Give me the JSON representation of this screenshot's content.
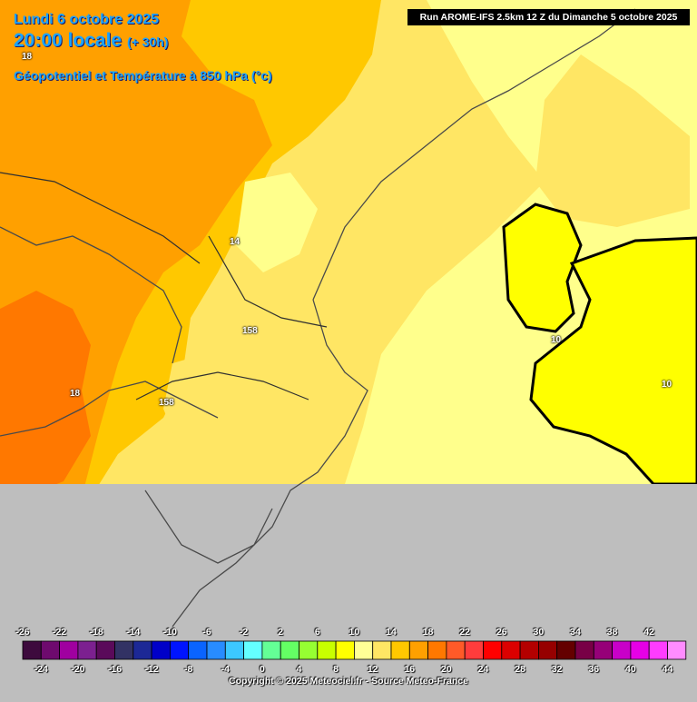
{
  "header": {
    "date": "Lundi 6 octobre 2025",
    "time": "20:00 locale",
    "lead": "(+ 30h)",
    "field": "Géopotentiel et Température à 850 hPa (°c)",
    "run": "Run AROME-IFS 2.5km 12 Z du Dimanche 5 octobre 2025"
  },
  "contour_labels": [
    "18",
    "14",
    "158",
    "18",
    "158",
    "10",
    "10"
  ],
  "legend": {
    "upper_ticks": [
      "-26",
      "-22",
      "-18",
      "-14",
      "-10",
      "-6",
      "-2",
      "2",
      "6",
      "10",
      "14",
      "18",
      "22",
      "26",
      "30",
      "34",
      "38",
      "42"
    ],
    "lower_ticks": [
      "-24",
      "-20",
      "-16",
      "-12",
      "-8",
      "-4",
      "0",
      "4",
      "8",
      "12",
      "16",
      "20",
      "24",
      "28",
      "32",
      "36",
      "40",
      "44"
    ],
    "colors": [
      "#3d0a3d",
      "#6e0a6e",
      "#a000a0",
      "#7c2090",
      "#5a0a5a",
      "#323264",
      "#1c2896",
      "#0000c8",
      "#0014ff",
      "#0a64ff",
      "#288cff",
      "#3cc8ff",
      "#64ffff",
      "#64ff96",
      "#64ff64",
      "#96ff32",
      "#c8ff00",
      "#ffff00",
      "#ffff96",
      "#ffe664",
      "#ffc800",
      "#ffa000",
      "#ff7800",
      "#ff5a28",
      "#ff3c3c",
      "#ff0000",
      "#dc0000",
      "#b40000",
      "#960000",
      "#640000",
      "#780046",
      "#960078",
      "#c800c8",
      "#e600e6",
      "#ff3cff",
      "#ff8cff"
    ]
  },
  "copyright": "Copyright © 2025 Meteociel.fr - Source Meteo-France"
}
